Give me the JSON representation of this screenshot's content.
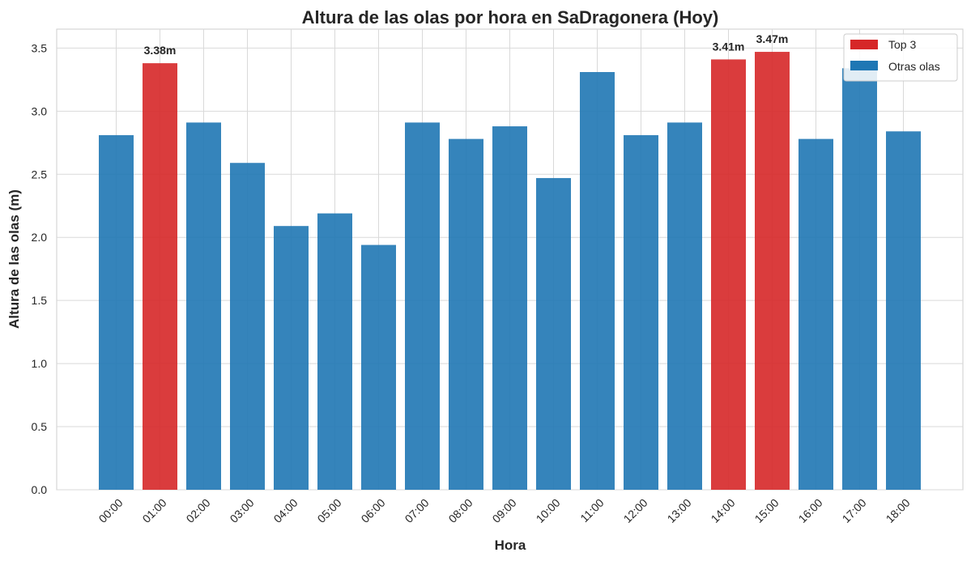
{
  "chart_data": {
    "type": "bar",
    "title": "Altura de las olas por hora en SaDragonera (Hoy)",
    "xlabel": "Hora",
    "ylabel": "Altura de las olas (m)",
    "categories": [
      "00:00",
      "01:00",
      "02:00",
      "03:00",
      "04:00",
      "05:00",
      "06:00",
      "07:00",
      "08:00",
      "09:00",
      "10:00",
      "11:00",
      "12:00",
      "13:00",
      "14:00",
      "15:00",
      "16:00",
      "17:00",
      "18:00"
    ],
    "values": [
      2.81,
      3.38,
      2.91,
      2.59,
      2.09,
      2.19,
      1.94,
      2.91,
      2.78,
      2.88,
      2.47,
      3.31,
      2.81,
      2.91,
      3.41,
      3.47,
      2.78,
      3.34,
      2.84
    ],
    "highlight": [
      false,
      true,
      false,
      false,
      false,
      false,
      false,
      false,
      false,
      false,
      false,
      false,
      false,
      false,
      true,
      true,
      false,
      false,
      false
    ],
    "data_labels": [
      "",
      "3.38m",
      "",
      "",
      "",
      "",
      "",
      "",
      "",
      "",
      "",
      "",
      "",
      "",
      "3.41m",
      "3.47m",
      "",
      "",
      ""
    ],
    "ylim": [
      0,
      3.65
    ],
    "yticks": [
      "0.0",
      "0.5",
      "1.0",
      "1.5",
      "2.0",
      "2.5",
      "3.0",
      "3.5"
    ],
    "grid": true,
    "legend_position": "top-right",
    "legend": [
      {
        "name": "Top 3",
        "color": "#d62728"
      },
      {
        "name": "Otras olas",
        "color": "#1f77b4"
      }
    ],
    "colors": {
      "highlight": "#d62728",
      "other": "#1f77b4"
    }
  }
}
